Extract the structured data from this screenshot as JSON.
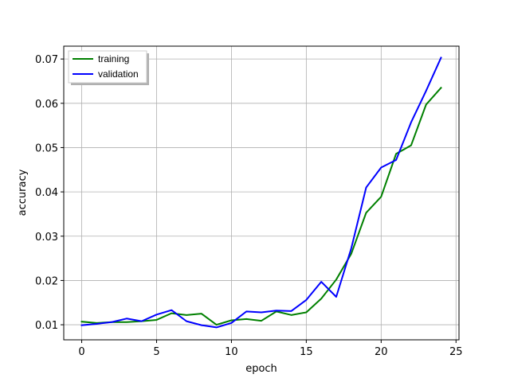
{
  "chart_data": {
    "type": "line",
    "title": "",
    "xlabel": "epoch",
    "ylabel": "accuracy",
    "xlim": [
      -1.2,
      25.2
    ],
    "ylim": [
      0.0066,
      0.0729
    ],
    "xticks": [
      0,
      5,
      10,
      15,
      20,
      25
    ],
    "xtick_labels": [
      "0",
      "5",
      "10",
      "15",
      "20",
      "25"
    ],
    "yticks": [
      0.01,
      0.02,
      0.03,
      0.04,
      0.05,
      0.06,
      0.07
    ],
    "ytick_labels": [
      "0.01",
      "0.02",
      "0.03",
      "0.04",
      "0.05",
      "0.06",
      "0.07"
    ],
    "grid": true,
    "legend_position": "top-left",
    "x": [
      0,
      1,
      2,
      3,
      4,
      5,
      6,
      7,
      8,
      9,
      10,
      11,
      12,
      13,
      14,
      15,
      16,
      17,
      18,
      19,
      20,
      21,
      22,
      23,
      24
    ],
    "series": [
      {
        "name": "training",
        "color": "#008000",
        "values": [
          0.0107,
          0.0104,
          0.0106,
          0.0106,
          0.0108,
          0.0111,
          0.0126,
          0.0122,
          0.0125,
          0.01,
          0.011,
          0.0113,
          0.0109,
          0.013,
          0.0122,
          0.0128,
          0.0159,
          0.0202,
          0.026,
          0.0353,
          0.0389,
          0.0486,
          0.0505,
          0.0597,
          0.0635
        ]
      },
      {
        "name": "validation",
        "color": "#0000ff",
        "values": [
          0.0099,
          0.0102,
          0.0106,
          0.0114,
          0.0108,
          0.0123,
          0.0133,
          0.0108,
          0.0099,
          0.0094,
          0.0104,
          0.013,
          0.0128,
          0.0132,
          0.0131,
          0.0156,
          0.0197,
          0.0163,
          0.0272,
          0.041,
          0.0455,
          0.0472,
          0.0557,
          0.0628,
          0.0703
        ]
      }
    ]
  }
}
